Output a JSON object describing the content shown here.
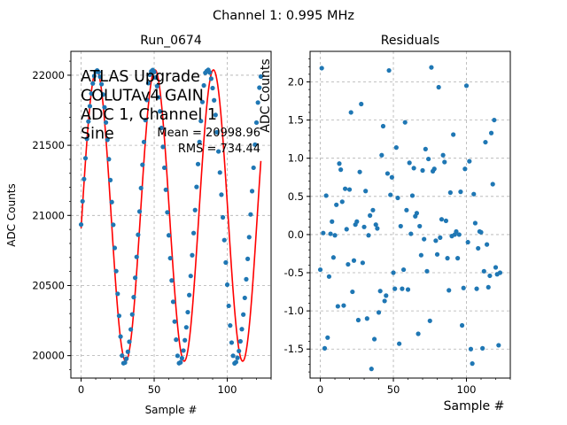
{
  "suptitle": "Channel 1: 0.995 MHz",
  "colors": {
    "points": "#1f77b4",
    "fit": "#ff0000",
    "grid": "#b0b0b0"
  },
  "chart_data": [
    {
      "type": "scatter",
      "title": "Run_0674",
      "xlabel": "Sample #",
      "ylabel": "ADC Counts",
      "xlim": [
        -7,
        130
      ],
      "ylim": [
        19840,
        22170
      ],
      "xticks": [
        0,
        50,
        100
      ],
      "yticks": [
        20000,
        20500,
        21000,
        21500,
        22000
      ],
      "grid": true,
      "annotations": {
        "block": [
          "ATLAS Upgrade",
          "COLUTAv4 GAIN",
          "ADC 1, Channel 1",
          "Sine"
        ],
        "mean": "Mean = 20998.96",
        "rms": "RMS = 734.44"
      },
      "fit": {
        "name": "",
        "offset": 20998.96,
        "amplitude": 1038.5,
        "period": 40.0,
        "phase_deg": -5.0
      },
      "series": [
        {
          "name": "",
          "x": [
            0,
            1,
            2,
            3,
            4,
            5,
            6,
            7,
            8,
            9,
            10,
            11,
            12,
            13,
            14,
            15,
            16,
            17,
            18,
            19,
            20,
            21,
            22,
            23,
            24,
            25,
            26,
            27,
            28,
            29,
            30,
            31,
            32,
            33,
            34,
            35,
            36,
            37,
            38,
            39,
            40,
            41,
            42,
            43,
            44,
            45,
            46,
            47,
            48,
            49,
            50,
            51,
            52,
            53,
            54,
            55,
            56,
            57,
            58,
            59,
            60,
            61,
            62,
            63,
            64,
            65,
            66,
            67,
            68,
            69,
            70,
            71,
            72,
            73,
            74,
            75,
            76,
            77,
            78,
            79,
            80,
            81,
            82,
            83,
            84,
            85,
            86,
            87,
            88,
            89,
            90,
            91,
            92,
            93,
            94,
            95,
            96,
            97,
            98,
            99,
            100,
            101,
            102,
            103,
            104,
            105,
            106,
            107,
            108,
            109,
            110,
            111,
            112,
            113,
            114,
            115,
            116,
            117,
            118,
            119,
            120,
            121,
            122,
            123
          ],
          "y": [
            20935,
            21101,
            21259,
            21408,
            21546,
            21670,
            21779,
            21869,
            21941,
            21994,
            22024,
            22034,
            22022,
            21989,
            21936,
            21862,
            21771,
            21663,
            21539,
            21401,
            21252,
            21095,
            20933,
            20768,
            20603,
            20441,
            20284,
            20136,
            20000,
            19946,
            19950,
            19978,
            20028,
            20099,
            20187,
            20294,
            20417,
            20555,
            20704,
            20862,
            21028,
            21195,
            21361,
            21524,
            21680,
            21823,
            21943,
            22003,
            22027,
            22037,
            22023,
            21984,
            21922,
            21842,
            21742,
            21624,
            21489,
            21340,
            21183,
            21022,
            20858,
            20695,
            20536,
            20384,
            20243,
            20114,
            19999,
            19946,
            19952,
            19982,
            20036,
            20110,
            20202,
            20310,
            20432,
            20568,
            20716,
            20874,
            21038,
            21203,
            21366,
            21524,
            21673,
            21809,
            21927,
            22017,
            22030,
            22038,
            22020,
            21975,
            21908,
            21821,
            21716,
            21593,
            21456,
            21306,
            21148,
            20986,
            20824,
            20664,
            20506,
            20355,
            20215,
            20093,
            19999,
            19945,
            19954,
            19984,
            20033,
            20102,
            20189,
            20293,
            20412,
            20545,
            20690,
            20845,
            21007,
            21173,
            21340,
            21505,
            21662,
            21805,
            21911,
            21990
          ]
        }
      ]
    },
    {
      "type": "scatter",
      "title": "Residuals",
      "xlabel": "Sample #",
      "ylabel": "ADC Counts",
      "xlim": [
        -7,
        130
      ],
      "ylim": [
        -1.88,
        2.4
      ],
      "xticks": [
        0,
        50,
        100
      ],
      "yticks": [
        -1.5,
        -1.0,
        -0.5,
        0.0,
        0.5,
        1.0,
        1.5,
        2.0
      ],
      "grid": true,
      "series": [
        {
          "name": "",
          "x": [
            0,
            1,
            2,
            3,
            4,
            5,
            6,
            7,
            8,
            9,
            10,
            11,
            12,
            13,
            14,
            15,
            16,
            17,
            18,
            19,
            20,
            21,
            22,
            23,
            24,
            25,
            26,
            27,
            28,
            29,
            30,
            31,
            32,
            33,
            34,
            35,
            36,
            37,
            38,
            39,
            40,
            41,
            42,
            43,
            44,
            45,
            46,
            47,
            48,
            49,
            50,
            51,
            52,
            53,
            54,
            55,
            56,
            57,
            58,
            59,
            60,
            61,
            62,
            63,
            64,
            65,
            66,
            67,
            68,
            69,
            70,
            71,
            72,
            73,
            74,
            75,
            76,
            77,
            78,
            79,
            80,
            81,
            82,
            83,
            84,
            85,
            86,
            87,
            88,
            89,
            90,
            91,
            92,
            93,
            94,
            95,
            96,
            97,
            98,
            99,
            100,
            101,
            102,
            103,
            104,
            105,
            106,
            107,
            108,
            109,
            110,
            111,
            112,
            113,
            114,
            115,
            116,
            117,
            118,
            119,
            120,
            121,
            122,
            123
          ],
          "y": [
            -0.46,
            2.18,
            0.02,
            -1.49,
            0.51,
            -1.35,
            -0.55,
            0.01,
            0.17,
            -0.3,
            -0.01,
            0.39,
            -0.94,
            0.93,
            0.85,
            0.43,
            -0.93,
            0.6,
            0.07,
            -0.39,
            0.59,
            1.6,
            -0.75,
            -0.34,
            0.13,
            0.17,
            -1.12,
            0.82,
            1.71,
            -0.37,
            0.1,
            0.57,
            -1.1,
            -0.01,
            0.25,
            -1.76,
            0.32,
            -1.37,
            0.13,
            0.08,
            -1.02,
            -0.74,
            1.04,
            1.42,
            -0.87,
            -0.8,
            0.8,
            2.15,
            0.52,
            0.75,
            -0.5,
            -0.71,
            1.14,
            0.48,
            -1.43,
            0.11,
            -0.71,
            -0.46,
            1.47,
            0.32,
            -0.72,
            0.94,
            0.01,
            0.51,
            0.87,
            0.24,
            0.28,
            -1.3,
            0.11,
            -0.27,
            0.84,
            -0.06,
            1.12,
            -0.48,
            0.99,
            -1.13,
            2.19,
            0.83,
            0.86,
            -0.08,
            -0.26,
            1.93,
            -0.04,
            0.2,
            1.04,
            0.95,
            0.18,
            -0.31,
            -0.73,
            0.55,
            -0.02,
            1.31,
            0.0,
            0.04,
            -0.31,
            0.0,
            0.56,
            -1.19,
            -0.7,
            0.86,
            1.95,
            -0.1,
            0.96,
            -1.5,
            -1.69,
            0.53,
            0.15,
            -0.71,
            -0.18,
            0.04,
            0.03,
            -1.49,
            -0.48,
            1.21,
            -0.13,
            -0.69,
            -0.54,
            1.33,
            0.66,
            1.5,
            -0.43,
            -0.52,
            -1.45,
            -0.5
          ]
        }
      ]
    }
  ]
}
